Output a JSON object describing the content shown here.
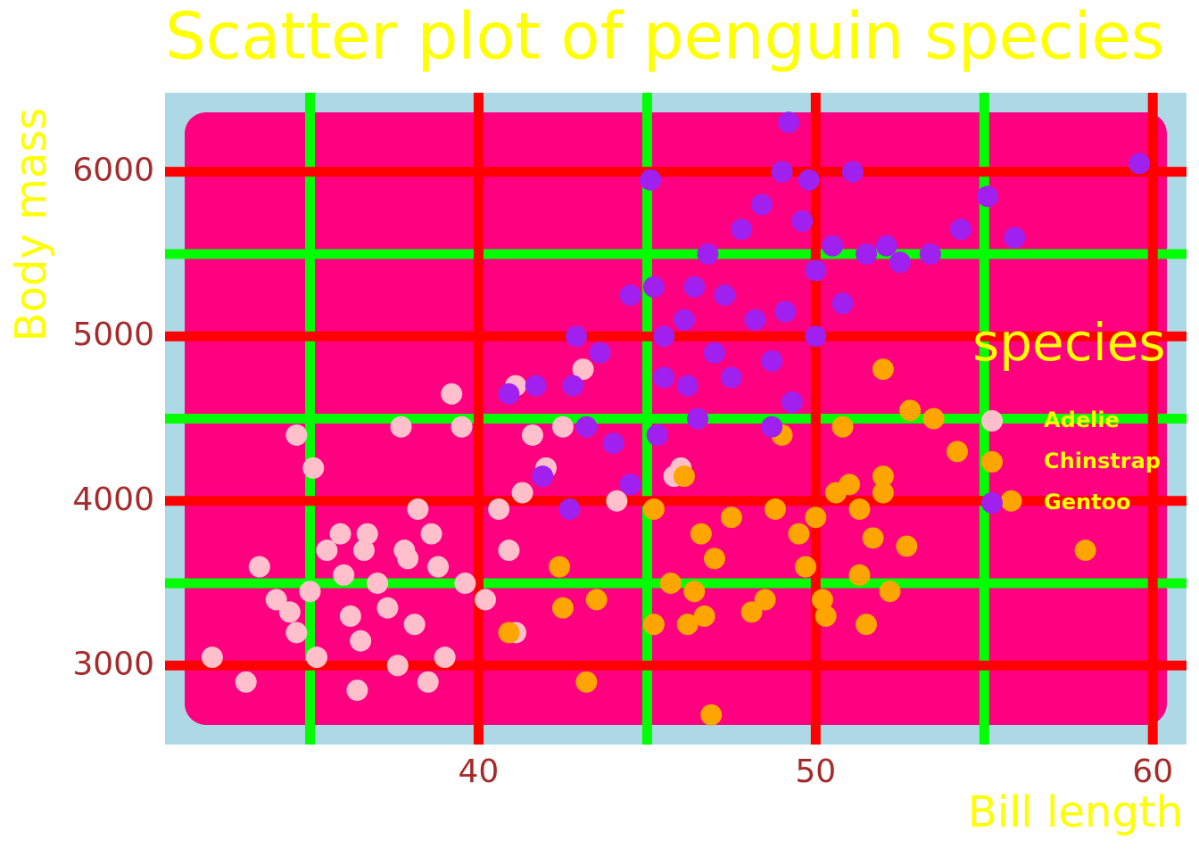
{
  "chart_data": {
    "type": "scatter",
    "title": "Scatter plot of penguin species",
    "x_label": "Bill length",
    "y_label": "Body mass",
    "legend_title": "species",
    "legend_position": "right",
    "grid": true,
    "xlim": [
      30.7,
      61.0
    ],
    "ylim": [
      2520,
      6480
    ],
    "xticks": [
      40,
      50,
      60
    ],
    "yticks": [
      3000,
      4000,
      5000,
      6000
    ],
    "x_minor_ticks": [
      35,
      45,
      55
    ],
    "y_minor_ticks": [
      3500,
      4500,
      5500
    ],
    "series": [
      {
        "name": "Adelie",
        "color": "#ffc0cb",
        "x": [
          32.1,
          33.1,
          33.5,
          34.0,
          34.4,
          34.6,
          34.6,
          35.0,
          35.1,
          35.2,
          35.5,
          35.9,
          36.0,
          36.2,
          36.4,
          36.5,
          36.7,
          37.0,
          37.3,
          37.6,
          37.7,
          37.8,
          38.1,
          38.2,
          38.5,
          38.6,
          38.8,
          39.0,
          39.2,
          39.5,
          39.6,
          40.2,
          40.6,
          41.1,
          41.1,
          41.3,
          41.6,
          42.0,
          42.5,
          43.1,
          44.1,
          45.8,
          46.0,
          40.9,
          37.9,
          36.6
        ],
        "y": [
          3050,
          2900,
          3600,
          3400,
          3325,
          4400,
          3200,
          3450,
          4200,
          3050,
          3700,
          3800,
          3550,
          3300,
          2850,
          3150,
          3800,
          3500,
          3350,
          3000,
          4450,
          3700,
          3250,
          3950,
          2900,
          3800,
          3600,
          3050,
          4650,
          4450,
          3500,
          3400,
          3950,
          4700,
          3200,
          4050,
          4400,
          4200,
          4450,
          4800,
          4000,
          4150,
          4200,
          3700,
          3650,
          3700
        ]
      },
      {
        "name": "Chinstrap",
        "color": "#ffa500",
        "x": [
          40.9,
          42.4,
          42.5,
          43.2,
          43.5,
          45.2,
          45.2,
          45.7,
          46.1,
          46.2,
          46.4,
          46.6,
          46.7,
          46.9,
          47.0,
          47.5,
          48.1,
          48.5,
          48.8,
          49.0,
          49.5,
          49.7,
          50.0,
          50.2,
          50.3,
          50.6,
          50.8,
          51.0,
          51.3,
          51.3,
          51.5,
          51.7,
          52.0,
          52.0,
          52.2,
          52.7,
          52.8,
          53.5,
          54.2,
          55.8,
          58.0,
          52.0
        ],
        "y": [
          3200,
          3600,
          3350,
          2900,
          3400,
          3250,
          3950,
          3500,
          4150,
          3250,
          3450,
          3800,
          3300,
          2700,
          3650,
          3900,
          3325,
          3400,
          3950,
          4400,
          3800,
          3600,
          3900,
          3400,
          3300,
          4050,
          4450,
          4100,
          3550,
          3950,
          3250,
          3775,
          4050,
          4150,
          3450,
          3725,
          4550,
          4500,
          4300,
          4000,
          3700,
          4800
        ]
      },
      {
        "name": "Gentoo",
        "color": "#a020f0",
        "x": [
          41.9,
          42.7,
          40.9,
          41.7,
          42.8,
          43.2,
          42.9,
          43.6,
          44.0,
          44.5,
          44.5,
          45.1,
          45.2,
          45.5,
          45.3,
          45.5,
          46.1,
          46.2,
          46.4,
          46.5,
          46.8,
          47.0,
          47.3,
          47.5,
          47.8,
          48.2,
          48.4,
          48.7,
          49.0,
          49.2,
          49.1,
          49.3,
          49.6,
          49.8,
          50.0,
          50.0,
          50.5,
          50.8,
          51.1,
          51.5,
          52.1,
          52.5,
          53.4,
          54.3,
          55.1,
          55.9,
          59.6,
          48.7
        ],
        "y": [
          4150,
          3950,
          4650,
          4700,
          4700,
          4450,
          5000,
          4900,
          4350,
          4100,
          5250,
          5950,
          5300,
          4750,
          4400,
          5000,
          5100,
          4700,
          5300,
          4500,
          5500,
          4900,
          5250,
          4750,
          5650,
          5100,
          5800,
          4850,
          6000,
          6300,
          5150,
          4600,
          5700,
          5950,
          5400,
          5000,
          5550,
          5200,
          6000,
          5500,
          5550,
          5450,
          5500,
          5650,
          5850,
          5600,
          6050,
          4450
        ]
      }
    ]
  }
}
